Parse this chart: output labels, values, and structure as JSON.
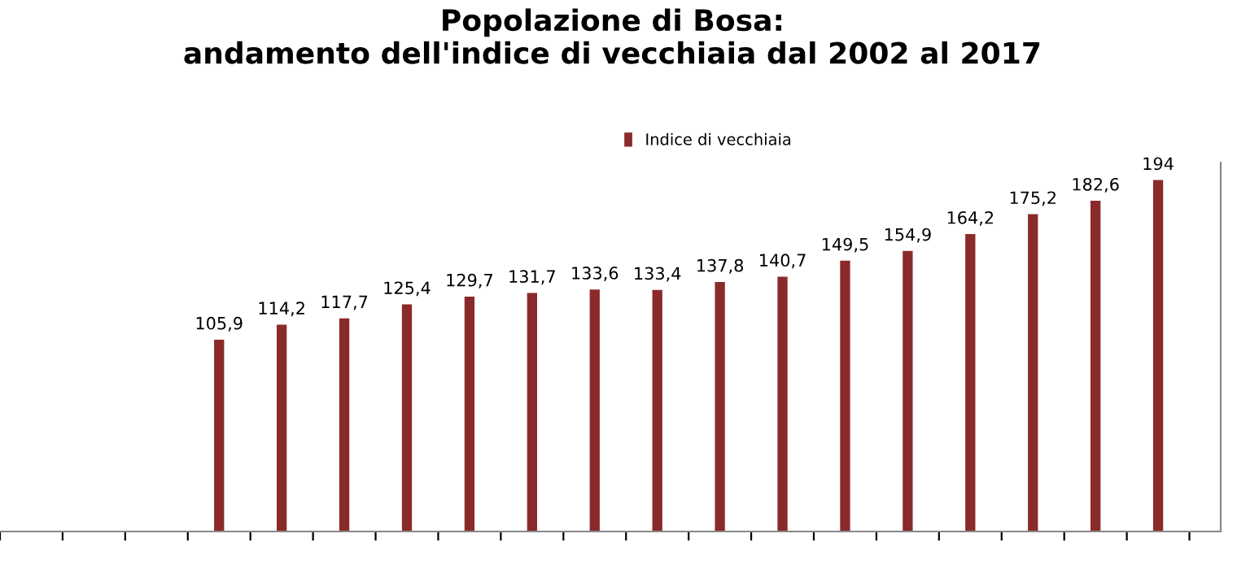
{
  "chart_data": {
    "type": "bar",
    "title": "Popolazione di Bosa:\nandamento dell'indice di vecchiaia dal 2002 al 2017",
    "categories": [
      null,
      null,
      null,
      null,
      null,
      null,
      null,
      null,
      null,
      null,
      null,
      null,
      null,
      null,
      null,
      null
    ],
    "series": [
      {
        "name": "Indice di vecchiaia",
        "color": "#8b2a2a",
        "values": [
          105.9,
          114.2,
          117.7,
          125.4,
          129.7,
          131.7,
          133.6,
          133.4,
          137.8,
          140.7,
          149.5,
          154.9,
          164.2,
          175.2,
          182.6,
          194
        ],
        "value_labels": [
          "105,9",
          "114,2",
          "117,7",
          "125,4",
          "129,7",
          "131,7",
          "133,6",
          "133,4",
          "137,8",
          "140,7",
          "149,5",
          "154,9",
          "164,2",
          "175,2",
          "182,6",
          "194"
        ]
      }
    ],
    "tick_labels": false,
    "legend": "top",
    "grid": false
  }
}
